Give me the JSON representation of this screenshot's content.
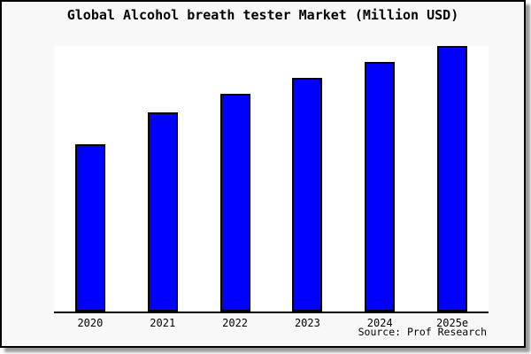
{
  "title": "Global Alcohol breath tester Market (Million USD)",
  "source_note": "Source: Prof Research",
  "colors": {
    "bar_fill": "#0000ff",
    "bar_border": "#000000",
    "frame_background": "#f8f8f8",
    "plot_background": "#ffffff",
    "frame_border": "#000000",
    "text": "#000000",
    "shadow": "#9a9a9a"
  },
  "chart_data": {
    "type": "bar",
    "title": "Global Alcohol breath tester Market (Million USD)",
    "categories": [
      "2020",
      "2021",
      "2022",
      "2023",
      "2024",
      "2025e"
    ],
    "values": [
      63,
      75,
      82,
      88,
      94,
      100
    ],
    "value_note": "No y-axis or data labels shown in image; values are relative bar heights normalized to max = 100",
    "xlabel": "",
    "ylabel": "",
    "ylim": [
      0,
      100
    ],
    "grid": false,
    "legend": "none",
    "bar_color": "#0000ff",
    "source": "Source: Prof Research"
  }
}
